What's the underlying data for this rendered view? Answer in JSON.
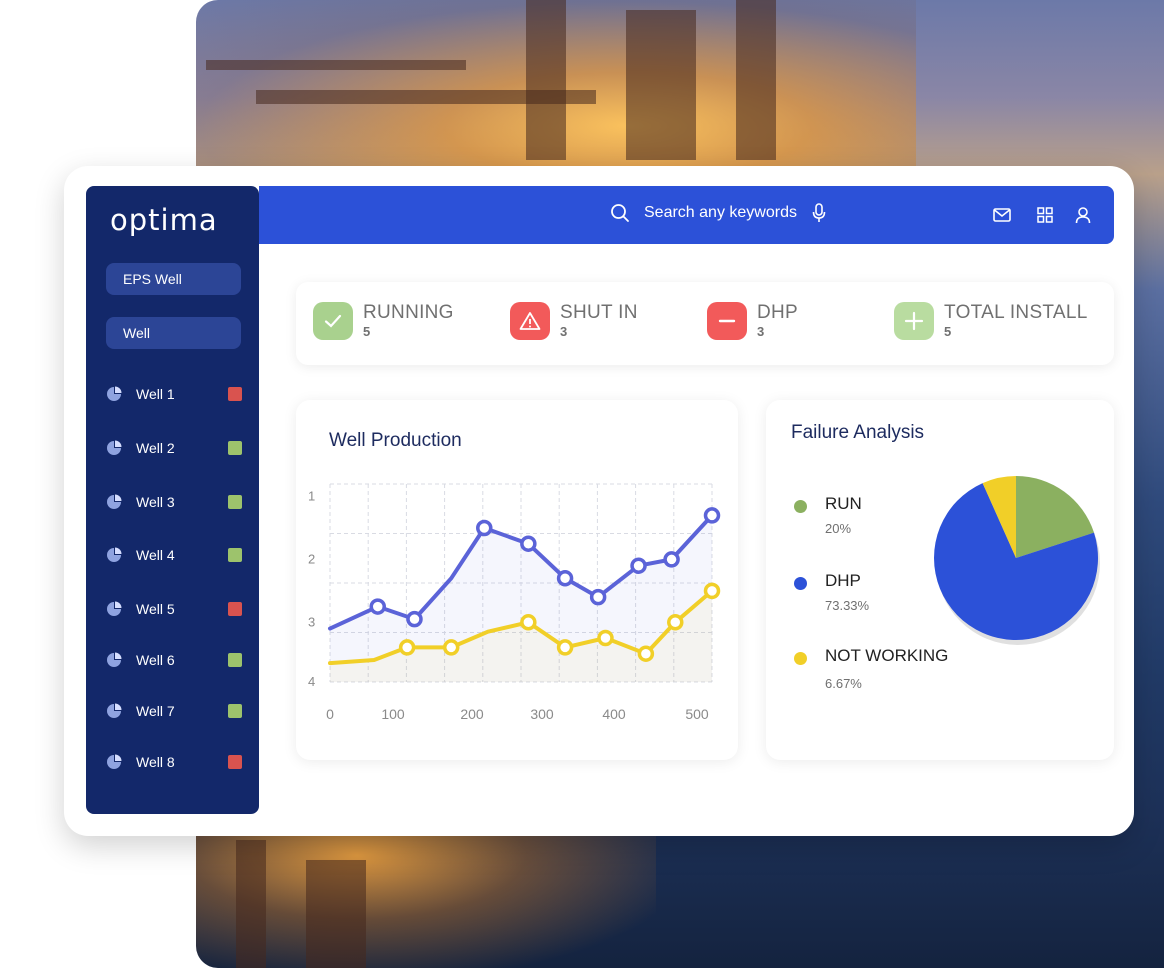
{
  "app": {
    "logo_text": "optima"
  },
  "sidebar": {
    "buttons": [
      {
        "label": "EPS Well"
      },
      {
        "label": "Well"
      }
    ],
    "wells": [
      {
        "label": "Well 1",
        "status_color": "#d9534f"
      },
      {
        "label": "Well 2",
        "status_color": "#9dc36c"
      },
      {
        "label": "Well 3",
        "status_color": "#9dc36c"
      },
      {
        "label": "Well 4",
        "status_color": "#9dc36c"
      },
      {
        "label": "Well 5",
        "status_color": "#d9534f"
      },
      {
        "label": "Well 6",
        "status_color": "#9dc36c"
      },
      {
        "label": "Well 7",
        "status_color": "#9dc36c"
      },
      {
        "label": "Well 8",
        "status_color": "#d9534f"
      }
    ]
  },
  "header": {
    "search_placeholder": "Search any keywords",
    "icons": [
      "mail-icon",
      "grid-icon",
      "user-icon"
    ]
  },
  "stats": [
    {
      "name": "RUNNING",
      "count": "5",
      "icon": "check-icon",
      "color": "#a9d18e"
    },
    {
      "name": "SHUT IN",
      "count": "3",
      "icon": "warning-icon",
      "color": "#f25a5a"
    },
    {
      "name": "DHP",
      "count": "3",
      "icon": "minus-icon",
      "color": "#f25a5a"
    },
    {
      "name": "TOTAL INSTALL",
      "count": "5",
      "icon": "plus-icon",
      "color": "#b9dca0"
    }
  ],
  "production": {
    "title": "Well Production",
    "chart_data": {
      "type": "line",
      "x": [
        0,
        100,
        200,
        300,
        400,
        500
      ],
      "y_tick_labels": [
        "1",
        "2",
        "3",
        "4"
      ],
      "x_tick_labels": [
        "0",
        "100",
        "200",
        "300",
        "400",
        "500"
      ],
      "grid": true,
      "series": [
        {
          "color": "#5b63d8",
          "points": [
            [
              0,
              3.1
            ],
            [
              65,
              2.75
            ],
            [
              115,
              2.95
            ],
            [
              165,
              2.3
            ],
            [
              210,
              1.5
            ],
            [
              270,
              1.75
            ],
            [
              320,
              2.3
            ],
            [
              365,
              2.6
            ],
            [
              420,
              2.1
            ],
            [
              465,
              2.0
            ],
            [
              520,
              1.3
            ]
          ]
        },
        {
          "color": "#f1cf28",
          "points": [
            [
              0,
              3.65
            ],
            [
              60,
              3.6
            ],
            [
              105,
              3.4
            ],
            [
              165,
              3.4
            ],
            [
              215,
              3.15
            ],
            [
              270,
              3.0
            ],
            [
              320,
              3.4
            ],
            [
              375,
              3.25
            ],
            [
              430,
              3.5
            ],
            [
              470,
              3.0
            ],
            [
              520,
              2.5
            ]
          ]
        }
      ]
    }
  },
  "failure": {
    "title": "Failure Analysis",
    "legend": [
      {
        "name": "RUN",
        "value": "20%",
        "color": "#8bb060"
      },
      {
        "name": "DHP",
        "value": "73.33%",
        "color": "#2c51d8"
      },
      {
        "name": "NOT WORKING",
        "value": "6.67%",
        "color": "#f1cf28"
      }
    ],
    "chart_data": {
      "type": "pie",
      "labels": [
        "RUN",
        "DHP",
        "NOT WORKING"
      ],
      "values": [
        20,
        73.33,
        6.67
      ],
      "colors": [
        "#8bb060",
        "#2c51d8",
        "#f1cf28"
      ]
    }
  }
}
